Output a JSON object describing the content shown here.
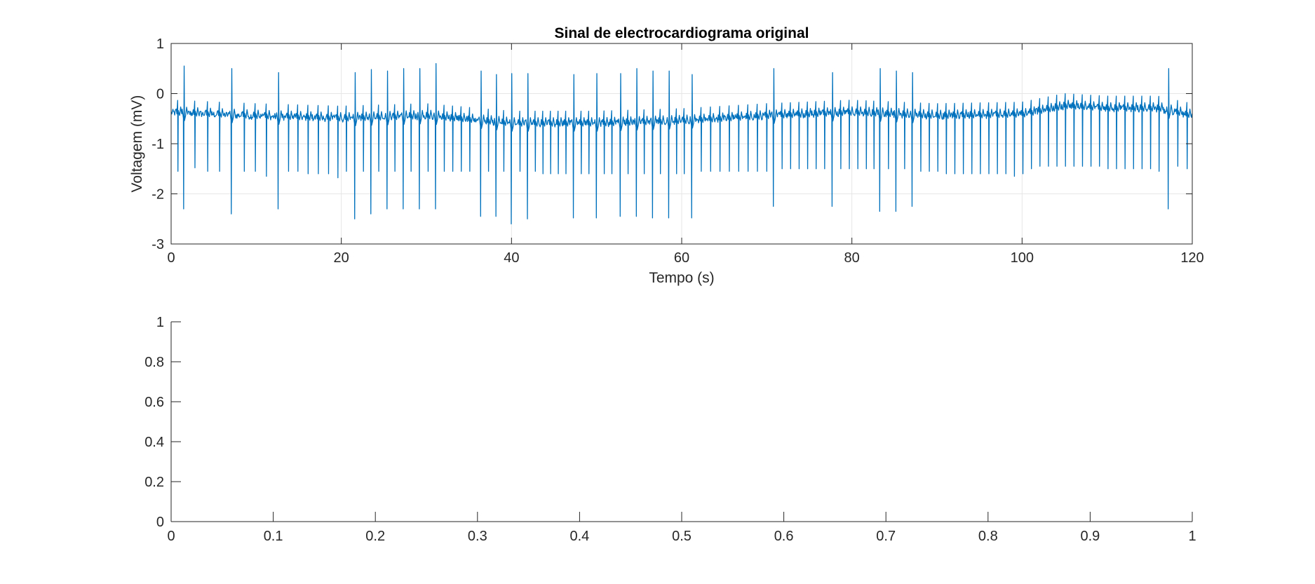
{
  "colors": {
    "series": "#0072BD",
    "axis": "#262626",
    "grid": "#e6e6e6",
    "background": "#ffffff"
  },
  "chart_data": [
    {
      "type": "line",
      "title": "Sinal de electrocardiograma original",
      "xlabel": "Tempo (s)",
      "ylabel": "Voltagem (mV)",
      "xlim": [
        0,
        120
      ],
      "ylim": [
        -3,
        1
      ],
      "xticks": [
        0,
        20,
        40,
        60,
        80,
        100,
        120
      ],
      "xtick_labels": [
        "0",
        "20",
        "40",
        "60",
        "80",
        "100",
        "120"
      ],
      "yticks": [
        -3,
        -2,
        -1,
        0,
        1
      ],
      "ytick_labels": [
        "-3",
        "-2",
        "-1",
        "0",
        "1"
      ],
      "grid": true,
      "box": true,
      "series": [
        {
          "baseline": [
            [
              0,
              -0.38
            ],
            [
              10,
              -0.45
            ],
            [
              20,
              -0.5
            ],
            [
              30,
              -0.45
            ],
            [
              40,
              -0.6
            ],
            [
              50,
              -0.6
            ],
            [
              60,
              -0.55
            ],
            [
              70,
              -0.45
            ],
            [
              80,
              -0.38
            ],
            [
              90,
              -0.45
            ],
            [
              100,
              -0.42
            ],
            [
              105,
              -0.25
            ],
            [
              110,
              -0.3
            ],
            [
              116,
              -0.3
            ],
            [
              120,
              -0.45
            ]
          ],
          "beats": [
            {
              "t": 0.8,
              "r": -1.55,
              "s": null
            },
            {
              "t": 1.5,
              "r": 0.55,
              "s": -2.3
            },
            {
              "t": 2.8,
              "r": -1.48,
              "s": null
            },
            {
              "t": 4.3,
              "r": -1.55,
              "s": null
            },
            {
              "t": 5.7,
              "r": -1.55,
              "s": null
            },
            {
              "t": 7.1,
              "r": 0.5,
              "s": -2.4
            },
            {
              "t": 8.6,
              "r": -1.55,
              "s": null
            },
            {
              "t": 9.9,
              "r": -1.55,
              "s": null
            },
            {
              "t": 11.2,
              "r": -1.65,
              "s": null
            },
            {
              "t": 12.6,
              "r": 0.42,
              "s": -2.3
            },
            {
              "t": 13.8,
              "r": -1.55,
              "s": null
            },
            {
              "t": 14.9,
              "r": -1.55,
              "s": null
            },
            {
              "t": 16.1,
              "r": -1.6,
              "s": null
            },
            {
              "t": 17.3,
              "r": -1.6,
              "s": null
            },
            {
              "t": 18.5,
              "r": -1.6,
              "s": null
            },
            {
              "t": 19.6,
              "r": -1.68,
              "s": null
            },
            {
              "t": 20.6,
              "r": -1.55,
              "s": null
            },
            {
              "t": 21.6,
              "r": 0.42,
              "s": -2.5
            },
            {
              "t": 22.6,
              "r": -1.55,
              "s": null
            },
            {
              "t": 23.5,
              "r": 0.48,
              "s": -2.4
            },
            {
              "t": 24.4,
              "r": -1.55,
              "s": null
            },
            {
              "t": 25.4,
              "r": 0.45,
              "s": -2.3
            },
            {
              "t": 26.3,
              "r": -1.55,
              "s": null
            },
            {
              "t": 27.3,
              "r": 0.5,
              "s": -2.3
            },
            {
              "t": 28.2,
              "r": -1.55,
              "s": null
            },
            {
              "t": 29.2,
              "r": 0.5,
              "s": -2.3
            },
            {
              "t": 30.2,
              "r": -1.55,
              "s": null
            },
            {
              "t": 31.1,
              "r": 0.6,
              "s": -2.3
            },
            {
              "t": 32.1,
              "r": -1.55,
              "s": null
            },
            {
              "t": 33.1,
              "r": -1.55,
              "s": null
            },
            {
              "t": 34.1,
              "r": -1.55,
              "s": null
            },
            {
              "t": 35.1,
              "r": -1.55,
              "s": null
            },
            {
              "t": 36.4,
              "r": 0.45,
              "s": -2.45
            },
            {
              "t": 37.3,
              "r": -1.55,
              "s": null
            },
            {
              "t": 38.2,
              "r": 0.38,
              "s": -2.45
            },
            {
              "t": 39.1,
              "r": -1.55,
              "s": null
            },
            {
              "t": 40.0,
              "r": 0.4,
              "s": -2.6
            },
            {
              "t": 41.0,
              "r": -1.55,
              "s": null
            },
            {
              "t": 41.9,
              "r": 0.4,
              "s": -2.5
            },
            {
              "t": 42.8,
              "r": -1.55,
              "s": null
            },
            {
              "t": 43.7,
              "r": -1.6,
              "s": null
            },
            {
              "t": 44.6,
              "r": -1.6,
              "s": null
            },
            {
              "t": 45.5,
              "r": -1.6,
              "s": null
            },
            {
              "t": 46.4,
              "r": -1.6,
              "s": null
            },
            {
              "t": 47.3,
              "r": 0.38,
              "s": -2.48
            },
            {
              "t": 48.2,
              "r": -1.6,
              "s": null
            },
            {
              "t": 49.1,
              "r": -1.6,
              "s": null
            },
            {
              "t": 50.0,
              "r": 0.4,
              "s": -2.48
            },
            {
              "t": 50.9,
              "r": -1.6,
              "s": null
            },
            {
              "t": 51.8,
              "r": -1.6,
              "s": null
            },
            {
              "t": 52.8,
              "r": 0.4,
              "s": -2.45
            },
            {
              "t": 53.7,
              "r": -1.6,
              "s": null
            },
            {
              "t": 54.7,
              "r": 0.5,
              "s": -2.45
            },
            {
              "t": 55.6,
              "r": -1.6,
              "s": null
            },
            {
              "t": 56.6,
              "r": 0.45,
              "s": -2.48
            },
            {
              "t": 57.5,
              "r": -1.6,
              "s": null
            },
            {
              "t": 58.5,
              "r": 0.45,
              "s": -2.48
            },
            {
              "t": 59.4,
              "r": -1.6,
              "s": null
            },
            {
              "t": 60.3,
              "r": -1.6,
              "s": null
            },
            {
              "t": 61.2,
              "r": 0.38,
              "s": -2.48
            },
            {
              "t": 62.3,
              "r": -1.55,
              "s": null
            },
            {
              "t": 63.4,
              "r": -1.55,
              "s": null
            },
            {
              "t": 64.5,
              "r": -1.55,
              "s": null
            },
            {
              "t": 65.6,
              "r": -1.55,
              "s": null
            },
            {
              "t": 66.7,
              "r": -1.55,
              "s": null
            },
            {
              "t": 67.8,
              "r": -1.55,
              "s": null
            },
            {
              "t": 68.9,
              "r": -1.55,
              "s": null
            },
            {
              "t": 70.0,
              "r": -1.55,
              "s": null
            },
            {
              "t": 70.8,
              "r": 0.5,
              "s": -2.25
            },
            {
              "t": 71.8,
              "r": -1.5,
              "s": null
            },
            {
              "t": 72.8,
              "r": -1.5,
              "s": null
            },
            {
              "t": 73.8,
              "r": -1.5,
              "s": null
            },
            {
              "t": 74.8,
              "r": -1.5,
              "s": null
            },
            {
              "t": 75.8,
              "r": -1.5,
              "s": null
            },
            {
              "t": 76.8,
              "r": -1.5,
              "s": null
            },
            {
              "t": 77.7,
              "r": 0.42,
              "s": -2.25
            },
            {
              "t": 78.7,
              "r": -1.5,
              "s": null
            },
            {
              "t": 79.7,
              "r": -1.5,
              "s": null
            },
            {
              "t": 80.7,
              "r": -1.5,
              "s": null
            },
            {
              "t": 81.7,
              "r": -1.5,
              "s": null
            },
            {
              "t": 82.6,
              "r": -1.5,
              "s": null
            },
            {
              "t": 83.3,
              "r": 0.5,
              "s": -2.35
            },
            {
              "t": 84.3,
              "r": -1.5,
              "s": null
            },
            {
              "t": 85.2,
              "r": 0.45,
              "s": -2.35
            },
            {
              "t": 86.2,
              "r": -1.5,
              "s": null
            },
            {
              "t": 87.1,
              "r": 0.42,
              "s": -2.25
            },
            {
              "t": 88.1,
              "r": -1.55,
              "s": null
            },
            {
              "t": 89.1,
              "r": -1.55,
              "s": null
            },
            {
              "t": 90.1,
              "r": -1.55,
              "s": null
            },
            {
              "t": 91.1,
              "r": -1.6,
              "s": null
            },
            {
              "t": 92.1,
              "r": -1.6,
              "s": null
            },
            {
              "t": 93.1,
              "r": -1.6,
              "s": null
            },
            {
              "t": 94.1,
              "r": -1.6,
              "s": null
            },
            {
              "t": 95.1,
              "r": -1.6,
              "s": null
            },
            {
              "t": 96.1,
              "r": -1.6,
              "s": null
            },
            {
              "t": 97.1,
              "r": -1.6,
              "s": null
            },
            {
              "t": 98.1,
              "r": -1.6,
              "s": null
            },
            {
              "t": 99.1,
              "r": -1.65,
              "s": null
            },
            {
              "t": 100.1,
              "r": -1.6,
              "s": null
            },
            {
              "t": 101.1,
              "r": -1.5,
              "s": null
            },
            {
              "t": 102.1,
              "r": -1.45,
              "s": null
            },
            {
              "t": 103.1,
              "r": -1.45,
              "s": null
            },
            {
              "t": 104.1,
              "r": -1.45,
              "s": null
            },
            {
              "t": 105.1,
              "r": -1.45,
              "s": null
            },
            {
              "t": 106.1,
              "r": -1.45,
              "s": null
            },
            {
              "t": 107.1,
              "r": -1.45,
              "s": null
            },
            {
              "t": 108.1,
              "r": -1.45,
              "s": null
            },
            {
              "t": 109.1,
              "r": -1.45,
              "s": null
            },
            {
              "t": 110.1,
              "r": -1.5,
              "s": null
            },
            {
              "t": 111.1,
              "r": -1.5,
              "s": null
            },
            {
              "t": 112.1,
              "r": -1.5,
              "s": null
            },
            {
              "t": 113.1,
              "r": -1.5,
              "s": null
            },
            {
              "t": 114.1,
              "r": -1.5,
              "s": null
            },
            {
              "t": 115.1,
              "r": -1.5,
              "s": null
            },
            {
              "t": 116.1,
              "r": -1.55,
              "s": null
            },
            {
              "t": 117.2,
              "r": 0.5,
              "s": -2.3
            },
            {
              "t": 118.3,
              "r": -1.45,
              "s": null
            },
            {
              "t": 119.4,
              "r": -1.5,
              "s": null
            }
          ]
        }
      ]
    },
    {
      "type": "line",
      "title": "",
      "xlabel": "",
      "ylabel": "",
      "xlim": [
        0,
        1
      ],
      "ylim": [
        0,
        1
      ],
      "xticks": [
        0,
        0.1,
        0.2,
        0.3,
        0.4,
        0.5,
        0.6,
        0.7,
        0.8,
        0.9,
        1
      ],
      "xtick_labels": [
        "0",
        "0.1",
        "0.2",
        "0.3",
        "0.4",
        "0.5",
        "0.6",
        "0.7",
        "0.8",
        "0.9",
        "1"
      ],
      "yticks": [
        0,
        0.2,
        0.4,
        0.6,
        0.8,
        1
      ],
      "ytick_labels": [
        "0",
        "0.2",
        "0.4",
        "0.6",
        "0.8",
        "1"
      ],
      "grid": false,
      "box": false,
      "series": []
    }
  ]
}
